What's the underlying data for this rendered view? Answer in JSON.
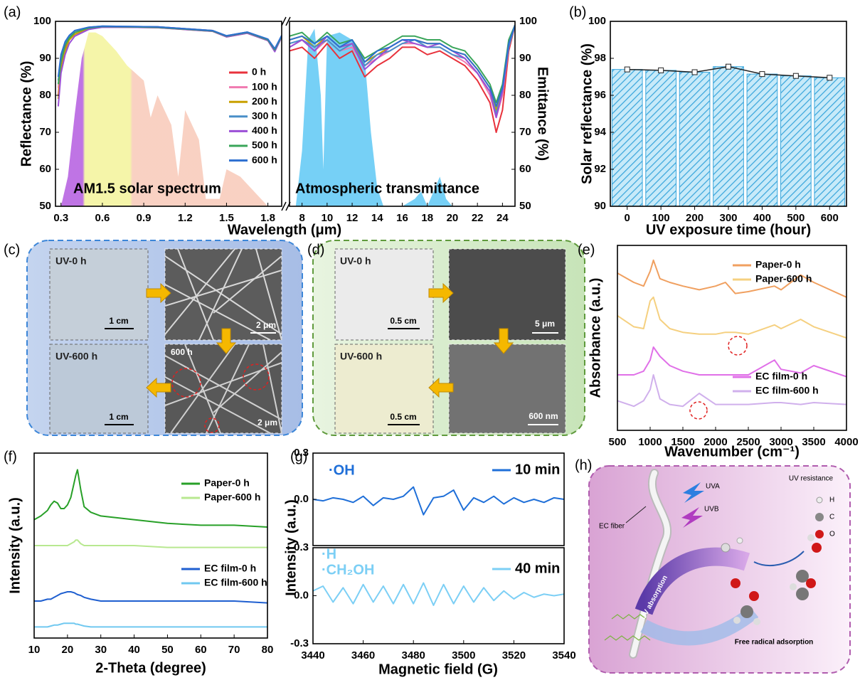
{
  "chart_data": [
    {
      "type": "line",
      "panel_label": "(a)",
      "ylabel": "Reflectance (%)",
      "xlabel": "Wavelength (μm)",
      "x": [
        0.28,
        0.3,
        0.33,
        0.36,
        0.4,
        0.5,
        0.6,
        0.8,
        1.0,
        1.2,
        1.4,
        1.5,
        1.65,
        1.8,
        1.85,
        1.9
      ],
      "series": [
        {
          "name": "0 h",
          "color": "#e8323c",
          "values": [
            80,
            88,
            93,
            95,
            96.5,
            98,
            98.5,
            98.5,
            98.5,
            98,
            97.5,
            96,
            97,
            95,
            92,
            96
          ]
        },
        {
          "name": "100 h",
          "color": "#f07ab0",
          "values": [
            82,
            89,
            93.5,
            95.5,
            97,
            98.2,
            98.6,
            98.5,
            98.4,
            97.9,
            97.4,
            96,
            97,
            95,
            92.5,
            96
          ]
        },
        {
          "name": "200 h",
          "color": "#c9a000",
          "values": [
            79,
            87,
            92,
            95,
            96.5,
            98,
            98.5,
            98.4,
            98.3,
            97.8,
            97.3,
            95.8,
            96.8,
            94.8,
            92,
            95.8
          ]
        },
        {
          "name": "300 h",
          "color": "#4a8fc8",
          "values": [
            84,
            90,
            94,
            96,
            97.5,
            98.4,
            98.7,
            98.6,
            98.5,
            98,
            97.5,
            96.1,
            97.1,
            95.1,
            92.5,
            96.1
          ]
        },
        {
          "name": "400 h",
          "color": "#9b4fd6",
          "values": [
            77,
            86,
            91,
            94,
            96,
            97.8,
            98.4,
            98.4,
            98.3,
            97.8,
            97.3,
            95.8,
            96.8,
            94.8,
            91.8,
            95.8
          ]
        },
        {
          "name": "500 h",
          "color": "#3aa55a",
          "values": [
            83,
            89,
            93.5,
            95.5,
            97,
            98.2,
            98.6,
            98.5,
            98.4,
            97.9,
            97.4,
            96,
            97,
            95,
            92.3,
            96
          ]
        },
        {
          "name": "600 h",
          "color": "#2d6fd0",
          "values": [
            85,
            91,
            94.5,
            96.2,
            97.5,
            98.4,
            98.7,
            98.6,
            98.5,
            98,
            97.5,
            96.1,
            97.1,
            95.2,
            92.6,
            96.2
          ]
        }
      ],
      "background": {
        "x": [
          0.3,
          0.35,
          0.4,
          0.45,
          0.5,
          0.55,
          0.6,
          0.7,
          0.78,
          0.9,
          0.95,
          1.0,
          1.1,
          1.15,
          1.2,
          1.3,
          1.35,
          1.45,
          1.5,
          1.6,
          1.75,
          1.8,
          1.9
        ],
        "values": [
          50,
          58,
          75,
          90,
          97,
          97,
          96,
          92,
          88,
          84,
          74,
          80,
          72,
          58,
          76,
          68,
          52,
          52,
          60,
          58,
          52,
          50,
          50
        ]
      },
      "annotations": [
        {
          "text": "AM1.5 solar spectrum"
        }
      ],
      "xlim": [
        0.26,
        1.9
      ],
      "xticks": [
        0.3,
        0.6,
        0.9,
        1.2,
        1.5,
        1.8
      ],
      "ylim": [
        50,
        100
      ],
      "yticks": [
        50,
        60,
        70,
        80,
        90,
        100
      ]
    },
    {
      "type": "line",
      "ylabel": "Emittance (%)",
      "yaxis": "right",
      "x": [
        7,
        8,
        9,
        10,
        11,
        12,
        13,
        14,
        15,
        16,
        17,
        18,
        19,
        20,
        21,
        22,
        23,
        23.5,
        24,
        24.5,
        25
      ],
      "series": [
        {
          "color": "#e8323c",
          "values": [
            92,
            93,
            90,
            94,
            90,
            92,
            85,
            88,
            90,
            93,
            93,
            91,
            92,
            90,
            88,
            84,
            78,
            70,
            76,
            92,
            99
          ]
        },
        {
          "color": "#f07ab0",
          "values": [
            93,
            95,
            92,
            95,
            92,
            93,
            88,
            90,
            92,
            94,
            94,
            93,
            93,
            91,
            89,
            86,
            80,
            74,
            80,
            93,
            99
          ]
        },
        {
          "color": "#c9a000",
          "values": [
            95,
            96,
            93,
            96,
            93,
            94,
            89,
            91,
            93,
            95,
            95,
            94,
            94,
            92,
            91,
            87,
            82,
            76,
            82,
            94,
            99
          ]
        },
        {
          "color": "#4a8fc8",
          "values": [
            94,
            95,
            93,
            95,
            92,
            94,
            88,
            91,
            92,
            94,
            95,
            93,
            93,
            91,
            90,
            86,
            81,
            75,
            81,
            93,
            99
          ]
        },
        {
          "color": "#9b4fd6",
          "values": [
            93,
            95,
            92,
            96,
            93,
            94,
            87,
            90,
            93,
            95,
            94,
            93,
            94,
            92,
            90,
            86,
            81,
            74,
            81,
            94,
            99
          ]
        },
        {
          "color": "#3aa55a",
          "values": [
            96,
            97,
            94,
            97,
            94,
            95,
            90,
            92,
            94,
            96,
            96,
            95,
            95,
            93,
            92,
            88,
            83,
            78,
            83,
            95,
            99
          ]
        },
        {
          "color": "#2d6fd0",
          "values": [
            95,
            96,
            94,
            96,
            93,
            95,
            89,
            92,
            93,
            95,
            95,
            94,
            94,
            92,
            91,
            87,
            82,
            77,
            82,
            94,
            99
          ]
        }
      ],
      "background": {
        "color": "#5ec8f5",
        "x": [
          7.5,
          8,
          8.5,
          9,
          9.5,
          9.7,
          10,
          11,
          12,
          13,
          13.5,
          14,
          14.5,
          15,
          16,
          17,
          17.5,
          18,
          19,
          19.5,
          20,
          21
        ],
        "values": [
          50,
          65,
          95,
          98,
          80,
          60,
          96,
          97,
          95,
          90,
          70,
          55,
          50,
          50,
          50,
          52,
          54,
          50,
          58,
          52,
          50,
          50
        ]
      },
      "annotations": [
        {
          "text": "Atmospheric transmittance"
        }
      ],
      "xlim": [
        7,
        25
      ],
      "xticks": [
        8,
        10,
        12,
        14,
        16,
        18,
        20,
        22,
        24
      ],
      "ylim": [
        50,
        100
      ],
      "yticks": [
        50,
        60,
        70,
        80,
        90,
        100
      ]
    },
    {
      "type": "bar",
      "panel_label": "(b)",
      "ylabel": "Solar reflectance (%)",
      "xlabel": "UV exposure time (hour)",
      "categories": [
        "0",
        "100",
        "200",
        "300",
        "400",
        "500",
        "600"
      ],
      "values": [
        97.4,
        97.35,
        97.25,
        97.55,
        97.15,
        97.05,
        96.95
      ],
      "color": "#3aa6dc",
      "line_color": "#222222",
      "ylim": [
        90,
        100
      ],
      "yticks": [
        90,
        92,
        94,
        96,
        98,
        100
      ]
    },
    {
      "type": "line",
      "panel_label": "(e)",
      "ylabel": "Absorbance (a.u.)",
      "xlabel": "Wavenumber (cm⁻¹)",
      "x": [
        500,
        750,
        900,
        1000,
        1050,
        1150,
        1300,
        1500,
        1750,
        2000,
        2150,
        2300,
        2500,
        2900,
        3000,
        3300,
        3500,
        4000
      ],
      "series": [
        {
          "name": "Paper-0 h",
          "color": "#f0a060",
          "values": [
            0.85,
            0.8,
            0.78,
            0.86,
            0.92,
            0.82,
            0.8,
            0.78,
            0.76,
            0.78,
            0.8,
            0.74,
            0.75,
            0.78,
            0.76,
            0.84,
            0.8,
            0.72
          ]
        },
        {
          "name": "Paper-600 h",
          "color": "#f5d080",
          "values": [
            0.62,
            0.56,
            0.55,
            0.7,
            0.72,
            0.6,
            0.55,
            0.53,
            0.52,
            0.52,
            0.53,
            0.53,
            0.52,
            0.57,
            0.55,
            0.6,
            0.56,
            0.5
          ]
        },
        {
          "name": "EC film-0 h",
          "color": "#e070e8",
          "values": [
            0.3,
            0.3,
            0.32,
            0.38,
            0.45,
            0.4,
            0.35,
            0.32,
            0.3,
            0.3,
            0.3,
            0.3,
            0.3,
            0.38,
            0.33,
            0.31,
            0.35,
            0.29
          ]
        },
        {
          "name": "EC film-600 h",
          "color": "#d0b0ec",
          "values": [
            0.16,
            0.13,
            0.16,
            0.22,
            0.3,
            0.17,
            0.14,
            0.13,
            0.2,
            0.14,
            0.14,
            0.14,
            0.14,
            0.15,
            0.15,
            0.14,
            0.15,
            0.14
          ]
        }
      ],
      "xlim": [
        500,
        4000
      ],
      "xticks": [
        500,
        1000,
        1500,
        2000,
        2500,
        3000,
        3500,
        4000
      ],
      "ylim": [
        0,
        1
      ]
    },
    {
      "type": "line",
      "panel_label": "(f)",
      "ylabel": "Intensity (a.u.)",
      "xlabel": "2-Theta (degree)",
      "x": [
        10,
        12,
        14,
        15,
        16,
        17,
        18,
        19,
        20,
        21,
        22,
        22.5,
        23,
        24,
        25,
        27,
        30,
        35,
        40,
        50,
        60,
        70,
        80
      ],
      "series": [
        {
          "name": "Paper-0 h",
          "color": "#28a028",
          "values": [
            0.64,
            0.66,
            0.69,
            0.72,
            0.74,
            0.73,
            0.7,
            0.7,
            0.72,
            0.76,
            0.84,
            0.88,
            0.91,
            0.8,
            0.71,
            0.68,
            0.66,
            0.65,
            0.64,
            0.62,
            0.61,
            0.61,
            0.6
          ]
        },
        {
          "name": "Paper-600 h",
          "color": "#b8e890",
          "values": [
            0.5,
            0.5,
            0.5,
            0.5,
            0.5,
            0.5,
            0.5,
            0.5,
            0.5,
            0.51,
            0.52,
            0.53,
            0.53,
            0.51,
            0.5,
            0.5,
            0.5,
            0.5,
            0.5,
            0.49,
            0.49,
            0.49,
            0.49
          ]
        },
        {
          "name": "EC film-0 h",
          "color": "#1f5fd0",
          "values": [
            0.2,
            0.2,
            0.21,
            0.21,
            0.22,
            0.23,
            0.24,
            0.245,
            0.25,
            0.25,
            0.245,
            0.24,
            0.235,
            0.23,
            0.22,
            0.21,
            0.2,
            0.2,
            0.2,
            0.2,
            0.2,
            0.2,
            0.19
          ]
        },
        {
          "name": "EC film-600 h",
          "color": "#70c8f0",
          "values": [
            0.06,
            0.06,
            0.06,
            0.065,
            0.07,
            0.07,
            0.075,
            0.08,
            0.08,
            0.08,
            0.08,
            0.075,
            0.075,
            0.07,
            0.065,
            0.06,
            0.06,
            0.06,
            0.06,
            0.06,
            0.06,
            0.06,
            0.06
          ]
        }
      ],
      "xlim": [
        10,
        80
      ],
      "xticks": [
        10,
        20,
        30,
        40,
        50,
        60,
        70,
        80
      ],
      "ylim": [
        0,
        1
      ]
    },
    {
      "type": "line",
      "panel_label": "(g)",
      "ylabel": "Intensity (a.u.)",
      "x": [
        3440,
        3444,
        3448,
        3452,
        3456,
        3460,
        3464,
        3468,
        3472,
        3476,
        3480,
        3484,
        3488,
        3492,
        3496,
        3500,
        3504,
        3508,
        3512,
        3516,
        3520,
        3524,
        3528,
        3532,
        3536,
        3540
      ],
      "series": [
        {
          "name": "10 min",
          "color": "#1f6fd8",
          "values": [
            0,
            -0.01,
            0.01,
            0,
            -0.02,
            0.02,
            -0.04,
            0.01,
            0,
            0.02,
            0.08,
            -0.1,
            0.01,
            0.02,
            0.06,
            -0.07,
            0.01,
            -0.02,
            0.02,
            -0.03,
            0.01,
            -0.02,
            0,
            -0.02,
            0.01,
            0
          ]
        }
      ],
      "annotations": [
        {
          "text": "·OH",
          "color": "#1f6fd8"
        }
      ],
      "xlim": [
        3440,
        3540
      ],
      "ylim": [
        -0.3,
        0.3
      ],
      "yticks": [
        0.3,
        {
          "value": 0,
          "label": "0.0"
        }
      ]
    },
    {
      "type": "line",
      "xlabel": "Magnetic field (G)",
      "x": [
        3440,
        3444,
        3448,
        3452,
        3456,
        3460,
        3464,
        3468,
        3472,
        3476,
        3480,
        3484,
        3488,
        3492,
        3496,
        3500,
        3504,
        3508,
        3512,
        3516,
        3520,
        3524,
        3528,
        3532,
        3536,
        3540
      ],
      "series": [
        {
          "name": "40 min",
          "color": "#7ccff5",
          "values": [
            0.03,
            0.06,
            -0.04,
            0.05,
            -0.05,
            0.07,
            -0.04,
            0.06,
            -0.05,
            0.07,
            -0.05,
            0.08,
            -0.06,
            0.07,
            -0.05,
            0.06,
            -0.04,
            0.05,
            -0.03,
            0.03,
            -0.02,
            0.02,
            -0.01,
            0.01,
            0,
            0.01
          ]
        }
      ],
      "annotations": [
        {
          "text": "·H",
          "color": "#7ccff5"
        },
        {
          "text": "·CH₂OH",
          "color": "#7ccff5"
        }
      ],
      "xlim": [
        3440,
        3540
      ],
      "xticks": [
        3440,
        3460,
        3480,
        3500,
        3520,
        3540
      ],
      "ylim": [
        -0.3,
        0.3
      ],
      "yticks": [
        0.3,
        {
          "value": 0,
          "label": "0.0"
        },
        -0.3
      ]
    }
  ],
  "panels": {
    "c": {
      "label": "(c)",
      "photo_0h": "UV-0 h",
      "photo_0h_scale": "1 cm",
      "sem_0h_scale": "2 μm",
      "photo_600h": "UV-600 h",
      "photo_600h_scale": "1 cm",
      "sem_600h": "600 h",
      "sem_600h_scale": "2 μm"
    },
    "d": {
      "label": "(d)",
      "photo_0h": "UV-0 h",
      "photo_0h_scale": "0.5 cm",
      "sem_0h_scale": "5 μm",
      "photo_600h": "UV-600 h",
      "photo_600h_scale": "0.5 cm",
      "sem_600h_scale": "600 nm"
    },
    "h": {
      "label": "(h)",
      "title": "UV resistance",
      "uva": "UVA",
      "uvb": "UVB",
      "fiber": "EC fiber",
      "legend": [
        "H",
        "C",
        "O"
      ],
      "absorption": "UV absorption",
      "adsorption": "Free radical adsorption"
    }
  }
}
